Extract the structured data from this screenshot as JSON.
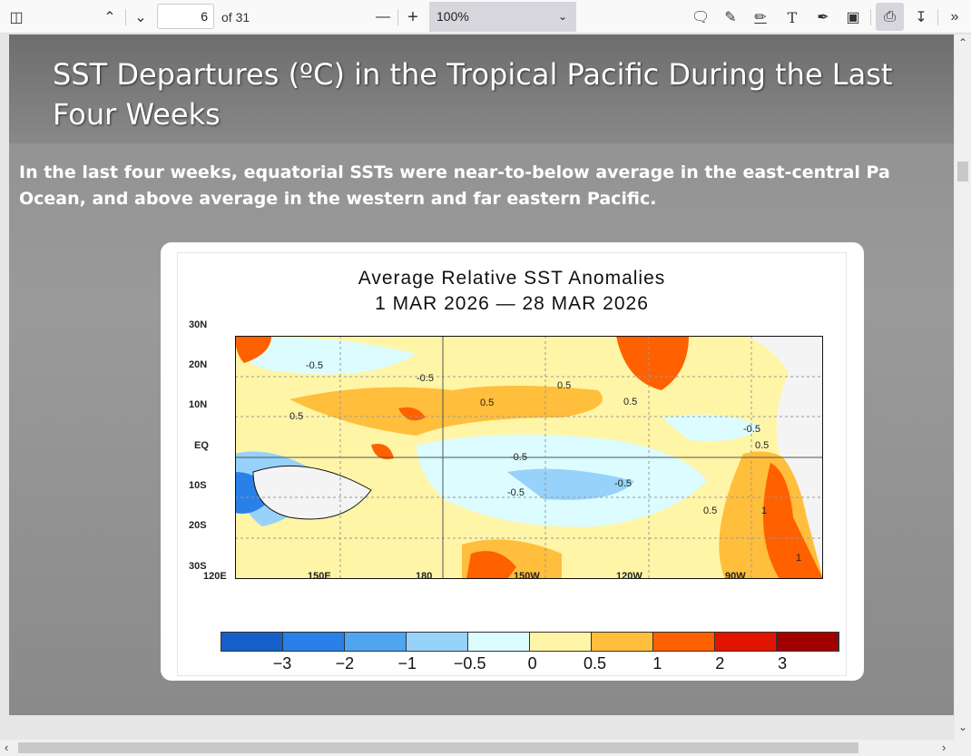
{
  "toolbar": {
    "page_current": "6",
    "page_total": "of 31",
    "zoom": "100%"
  },
  "slide": {
    "title_line1": "SST Departures (ºC) in the Tropical Pacific During the Last",
    "title_line2": "Four Weeks",
    "body_line1": "In the last four weeks, equatorial SSTs were near-to-below average in the east-central Pa",
    "body_line2": "Ocean, and above average in the western and far eastern Pacific."
  },
  "figure": {
    "title": "Average  Relative  SST  Anomalies",
    "dates": "1  MAR  2026  —  28  MAR  2026",
    "lat_labels": [
      "30N",
      "20N",
      "10N",
      "EQ",
      "10S",
      "20S",
      "30S"
    ],
    "lon_labels": [
      "120E",
      "150E",
      "180",
      "150W",
      "120W",
      "90W"
    ],
    "contour_labels": [
      "-0.5",
      "0.5",
      "-0.5",
      "0.5",
      "0.5",
      "0.5",
      "-0.5",
      "-0.5",
      "-0.5",
      "-0.5",
      "0.5",
      "1",
      "1",
      "0.5"
    ],
    "colorbar": {
      "colors": [
        "#1560c8",
        "#2880e8",
        "#50a5f0",
        "#96d2fa",
        "#dcfcff",
        "#fff5a6",
        "#ffbe3c",
        "#ff6000",
        "#e01400",
        "#a00000"
      ],
      "tick_labels": [
        "−3",
        "−2",
        "−1",
        "−0.5",
        "0",
        "0.5",
        "1",
        "2",
        "3"
      ]
    }
  }
}
